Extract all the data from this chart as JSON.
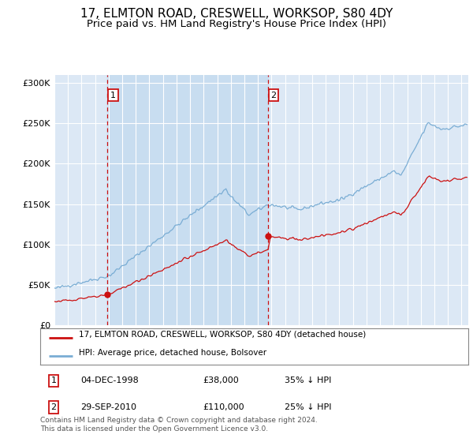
{
  "title": "17, ELMTON ROAD, CRESWELL, WORKSOP, S80 4DY",
  "subtitle": "Price paid vs. HM Land Registry's House Price Index (HPI)",
  "title_fontsize": 11,
  "subtitle_fontsize": 9.5,
  "background_color": "#ffffff",
  "plot_bg_color": "#dce8f5",
  "shade_color": "#c8ddf0",
  "grid_color": "#ffffff",
  "hpi_color": "#7aadd4",
  "price_color": "#cc1111",
  "marker_color": "#cc1111",
  "sale1_date_num": 1998.92,
  "sale1_price": 38000,
  "sale2_date_num": 2010.75,
  "sale2_price": 110000,
  "ylim": [
    0,
    310000
  ],
  "xlim_start": 1995.0,
  "xlim_end": 2025.5,
  "legend_label_price": "17, ELMTON ROAD, CRESWELL, WORKSOP, S80 4DY (detached house)",
  "legend_label_hpi": "HPI: Average price, detached house, Bolsover",
  "table_row1": [
    "1",
    "04-DEC-1998",
    "£38,000",
    "35% ↓ HPI"
  ],
  "table_row2": [
    "2",
    "29-SEP-2010",
    "£110,000",
    "25% ↓ HPI"
  ],
  "footer": "Contains HM Land Registry data © Crown copyright and database right 2024.\nThis data is licensed under the Open Government Licence v3.0.",
  "yticks": [
    0,
    50000,
    100000,
    150000,
    200000,
    250000,
    300000
  ],
  "ytick_labels": [
    "£0",
    "£50K",
    "£100K",
    "£150K",
    "£200K",
    "£250K",
    "£300K"
  ],
  "xticks": [
    1995,
    1996,
    1997,
    1998,
    1999,
    2000,
    2001,
    2002,
    2003,
    2004,
    2005,
    2006,
    2007,
    2008,
    2009,
    2010,
    2011,
    2012,
    2013,
    2014,
    2015,
    2016,
    2017,
    2018,
    2019,
    2020,
    2021,
    2022,
    2023,
    2024,
    2025
  ]
}
